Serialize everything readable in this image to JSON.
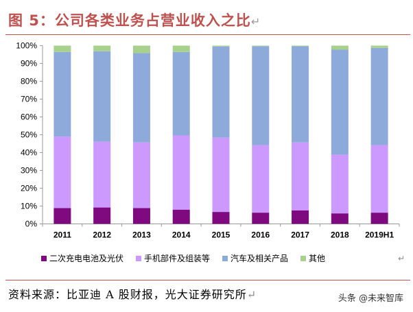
{
  "title": "图 5：公司各类业务占营业收入之比",
  "return_mark": "↵",
  "source": "资料来源：比亚迪 A 股财报，光大证券研究所",
  "watermark": "头条 @未来智库",
  "chart_data": {
    "type": "bar",
    "stacked": true,
    "categories": [
      "2011",
      "2012",
      "2013",
      "2014",
      "2015",
      "2016",
      "2017",
      "2018",
      "2019H1"
    ],
    "ylim": [
      0,
      100
    ],
    "yticks": [
      "0%",
      "10%",
      "20%",
      "30%",
      "40%",
      "50%",
      "60%",
      "70%",
      "80%",
      "90%",
      "100%"
    ],
    "grid": false,
    "legend_position": "bottom",
    "series": [
      {
        "name": "二次充电电池及光伏",
        "color": "#7f0a7f",
        "values": [
          8.9,
          9.2,
          8.9,
          8.0,
          6.7,
          6.3,
          7.6,
          5.9,
          6.3
        ]
      },
      {
        "name": "手机部件及组装等",
        "color": "#cc99ff",
        "values": [
          40.1,
          36.9,
          36.8,
          41.6,
          41.7,
          37.9,
          38.1,
          32.9,
          37.9
        ]
      },
      {
        "name": "汽车及相关产品",
        "color": "#8eaadb",
        "values": [
          47.4,
          50.7,
          50.1,
          46.8,
          51.1,
          55.5,
          53.9,
          58.9,
          54.5
        ]
      },
      {
        "name": "其他",
        "color": "#a9d18e",
        "values": [
          3.6,
          3.2,
          4.2,
          3.6,
          0.5,
          0.3,
          0.4,
          2.3,
          1.3
        ]
      }
    ]
  }
}
